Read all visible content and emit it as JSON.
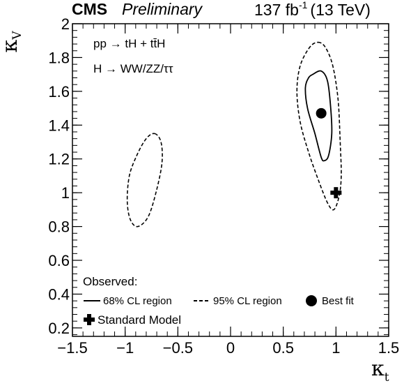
{
  "header": {
    "experiment": "CMS",
    "status": "Preliminary",
    "lumi_value": "137 fb",
    "lumi_exp": "-1",
    "lumi_energy": "(13 TeV)"
  },
  "annotations": {
    "process": "pp → tH + tt̄H",
    "decay": "H → WW/ZZ/ττ"
  },
  "legend": {
    "title": "Observed:",
    "items": [
      "68% CL region",
      "95% CL region",
      "Best fit",
      "Standard Model"
    ]
  },
  "chart_data": {
    "type": "scatter",
    "xlabel": "κ",
    "xlabel_sub": "t",
    "ylabel": "κ",
    "ylabel_sub": "V",
    "xlim": [
      -1.5,
      1.5
    ],
    "ylim": [
      0.15,
      2.0
    ],
    "x_ticks": [
      -1.5,
      -1,
      -0.5,
      0,
      0.5,
      1,
      1.5
    ],
    "x_tick_labels": [
      "−1.5",
      "−1",
      "−0.5",
      "0",
      "0.5",
      "1",
      "1.5"
    ],
    "y_ticks": [
      0.2,
      0.4,
      0.6,
      0.8,
      1,
      1.2,
      1.4,
      1.6,
      1.8,
      2
    ],
    "y_tick_labels": [
      "0.2",
      "0.4",
      "0.6",
      "0.8",
      "1",
      "1.2",
      "1.4",
      "1.6",
      "1.8",
      "2"
    ],
    "grid": false,
    "legend_position": "bottom",
    "best_fit": {
      "x": 0.86,
      "y": 1.47
    },
    "standard_model": {
      "x": 1.0,
      "y": 1.0
    },
    "contour_68": [
      [
        0.78,
        1.7
      ],
      [
        0.86,
        1.72
      ],
      [
        0.92,
        1.66
      ],
      [
        0.95,
        1.5
      ],
      [
        0.96,
        1.35
      ],
      [
        0.93,
        1.22
      ],
      [
        0.89,
        1.19
      ],
      [
        0.86,
        1.21
      ],
      [
        0.8,
        1.35
      ],
      [
        0.73,
        1.5
      ],
      [
        0.71,
        1.62
      ],
      [
        0.74,
        1.68
      ]
    ],
    "contour_95": [
      [
        0.83,
        1.89
      ],
      [
        0.9,
        1.86
      ],
      [
        0.97,
        1.75
      ],
      [
        1.02,
        1.55
      ],
      [
        1.04,
        1.3
      ],
      [
        1.05,
        1.1
      ],
      [
        1.03,
        0.98
      ],
      [
        0.98,
        0.9
      ],
      [
        0.92,
        0.94
      ],
      [
        0.83,
        1.08
      ],
      [
        0.74,
        1.24
      ],
      [
        0.66,
        1.42
      ],
      [
        0.63,
        1.6
      ],
      [
        0.66,
        1.75
      ],
      [
        0.75,
        1.86
      ]
    ],
    "contour_95_left": [
      [
        -0.72,
        1.35
      ],
      [
        -0.66,
        1.3
      ],
      [
        -0.65,
        1.18
      ],
      [
        -0.7,
        1.02
      ],
      [
        -0.78,
        0.86
      ],
      [
        -0.88,
        0.8
      ],
      [
        -0.95,
        0.84
      ],
      [
        -0.98,
        0.95
      ],
      [
        -0.96,
        1.1
      ],
      [
        -0.89,
        1.22
      ],
      [
        -0.8,
        1.32
      ]
    ]
  }
}
